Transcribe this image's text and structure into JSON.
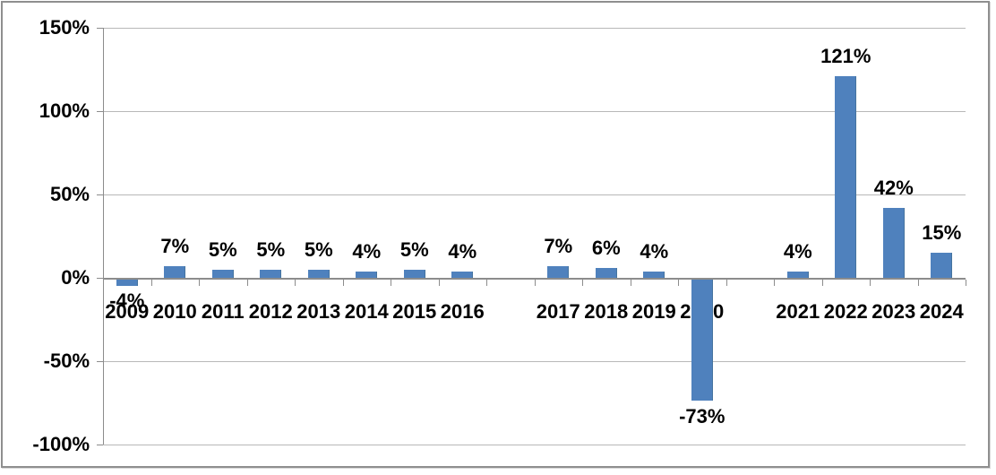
{
  "chart_data": {
    "type": "bar",
    "title": "",
    "xlabel": "",
    "ylabel": "",
    "categories": [
      "2009",
      "2010",
      "2011",
      "2012",
      "2013",
      "2014",
      "2015",
      "2016",
      "",
      "2017",
      "2018",
      "2019",
      "2020",
      "",
      "2021",
      "2022",
      "2023",
      "2024"
    ],
    "values": [
      -4,
      7,
      5,
      5,
      5,
      4,
      5,
      4,
      null,
      7,
      6,
      4,
      -73,
      null,
      4,
      121,
      42,
      15
    ],
    "data_labels": [
      "-4%",
      "7%",
      "5%",
      "5%",
      "5%",
      "4%",
      "5%",
      "4%",
      "",
      "7%",
      "6%",
      "4%",
      "-73%",
      "",
      "4%",
      "121%",
      "42%",
      "15%"
    ],
    "ylim": [
      -100,
      150
    ],
    "ytick_step": 50,
    "yticks": [
      {
        "value": 150,
        "label": "150%"
      },
      {
        "value": 100,
        "label": "100%"
      },
      {
        "value": 50,
        "label": "50%"
      },
      {
        "value": 0,
        "label": "0%"
      },
      {
        "value": -50,
        "label": "-50%"
      },
      {
        "value": -100,
        "label": "-100%"
      }
    ],
    "grid": "horizontal",
    "legend": null,
    "colors": {
      "bar_fill": "#4f81bd",
      "bar_edge": "#46749f",
      "gridline": "#b8b8b8",
      "axis": "#8c8c8c",
      "label_text": "#000000",
      "frame_border": "#8f8f8f",
      "background": "#ffffff"
    }
  }
}
